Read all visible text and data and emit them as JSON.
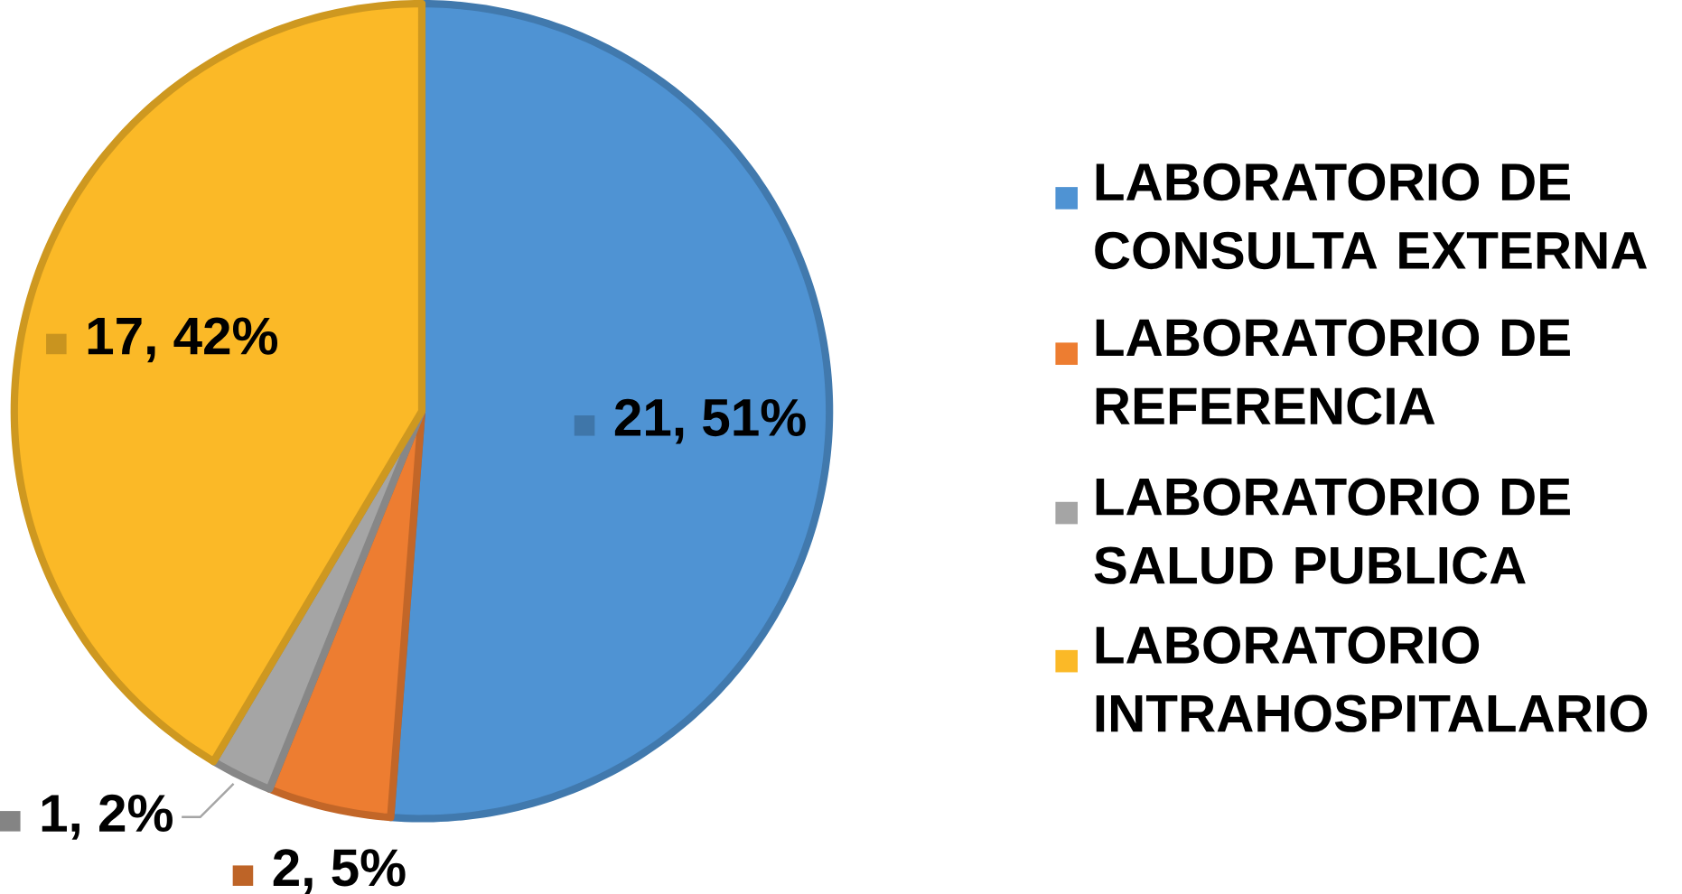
{
  "chart_data": {
    "type": "pie",
    "categories": [
      "LABORATORIO DE CONSULTA EXTERNA",
      "LABORATORIO DE REFERENCIA",
      "LABORATORIO DE SALUD PUBLICA",
      "LABORATORIO INTRAHOSPITALARIO"
    ],
    "values": [
      21,
      2,
      1,
      17
    ],
    "colors": [
      "#4f93d3",
      "#ed7d31",
      "#a5a5a5",
      "#fbb927"
    ],
    "value_labels": [
      "21, 51%",
      "2, 5%",
      "1, 2%",
      "17, 42%"
    ],
    "legend": "right"
  }
}
